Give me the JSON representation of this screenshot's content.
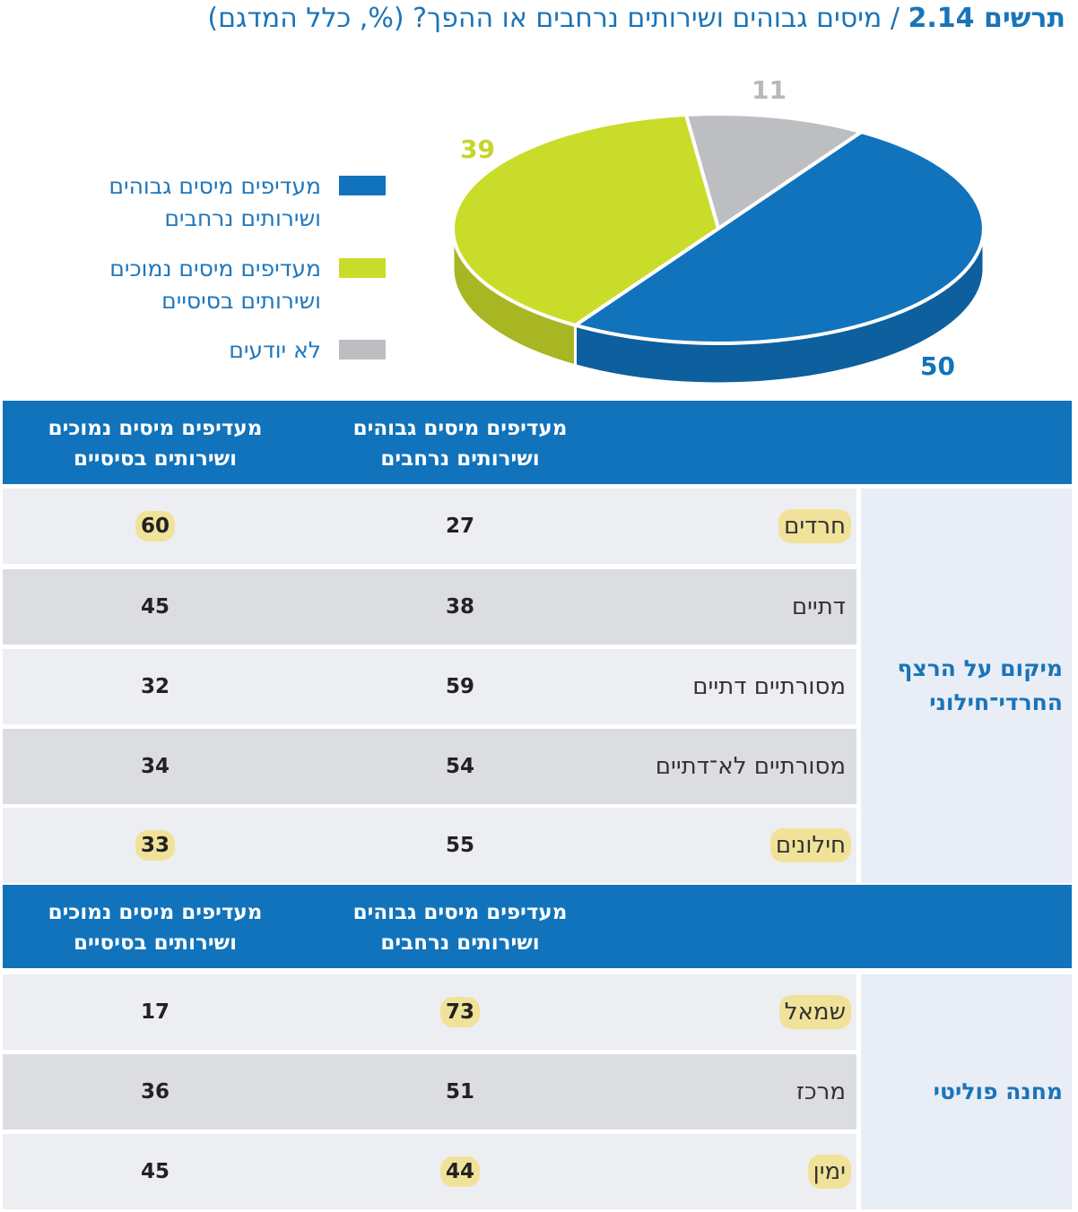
{
  "title": {
    "number": "תרשים 2.14",
    "text": " / מיסים גבוהים ושירותים נרחבים או ההפך? (%, כלל המדגם)"
  },
  "chart_data": {
    "type": "pie",
    "title": "מיסים גבוהים ושירותים נרחבים או ההפך? (%, כלל המדגם)",
    "slices": [
      {
        "name": "לא יודעים",
        "value": 11,
        "color": "#bdbec2",
        "side_color": "#a5a6aa",
        "label": "11",
        "label_color": "#b7b8bc"
      },
      {
        "name": "מעדיפים מיסים גבוהים ושירותים נרחבים",
        "value": 50,
        "color": "#1173bb",
        "side_color": "#0d5f9e",
        "label": "50",
        "label_color": "#1173bb"
      },
      {
        "name": "מעדיפים מיסים נמוכים ושירותים בסיסיים",
        "value": 39,
        "color": "#cadc2a",
        "side_color": "#a7b622",
        "label": "39",
        "label_color": "#c6d52b"
      }
    ],
    "legend": [
      {
        "line1": "מעדיפים מיסים גבוהים",
        "line2": "ושירותים נרחבים",
        "color": "#1173bb"
      },
      {
        "line1": "מעדיפים מיסים נמוכים",
        "line2": "ושירותים בסיסיים",
        "color": "#cadc2a"
      },
      {
        "line1": "לא יודעים",
        "line2": "",
        "color": "#bdbec2"
      }
    ],
    "legend_position": "left"
  },
  "table": {
    "header": {
      "high_1": "מעדיפים מיסים גבוהים",
      "high_2": "ושירותים נרחבים",
      "low_1": "מעדיפים מיסים נמוכים",
      "low_2": "ושירותים בסיסיים"
    },
    "sections": [
      {
        "label_1": "מיקום על הרצף",
        "label_2": "החרדי־חילוני",
        "rows": [
          {
            "label": "חרדים",
            "high": "27",
            "low": "60",
            "hl_label": true,
            "hl_high": false,
            "hl_low": true
          },
          {
            "label": "דתיים",
            "high": "38",
            "low": "45",
            "hl_label": false,
            "hl_high": false,
            "hl_low": false
          },
          {
            "label": "מסורתיים דתיים",
            "high": "59",
            "low": "32",
            "hl_label": false,
            "hl_high": false,
            "hl_low": false
          },
          {
            "label": "מסורתיים לא־דתיים",
            "high": "54",
            "low": "34",
            "hl_label": false,
            "hl_high": false,
            "hl_low": false
          },
          {
            "label": "חילונים",
            "high": "55",
            "low": "33",
            "hl_label": true,
            "hl_high": false,
            "hl_low": true
          }
        ]
      },
      {
        "label_1": "מחנה פוליטי",
        "label_2": "",
        "rows": [
          {
            "label": "שמאל",
            "high": "73",
            "low": "17",
            "hl_label": true,
            "hl_high": true,
            "hl_low": false
          },
          {
            "label": "מרכז",
            "high": "51",
            "low": "36",
            "hl_label": false,
            "hl_high": false,
            "hl_low": false
          },
          {
            "label": "ימין",
            "high": "44",
            "low": "45",
            "hl_label": true,
            "hl_high": true,
            "hl_low": false
          }
        ]
      }
    ]
  }
}
